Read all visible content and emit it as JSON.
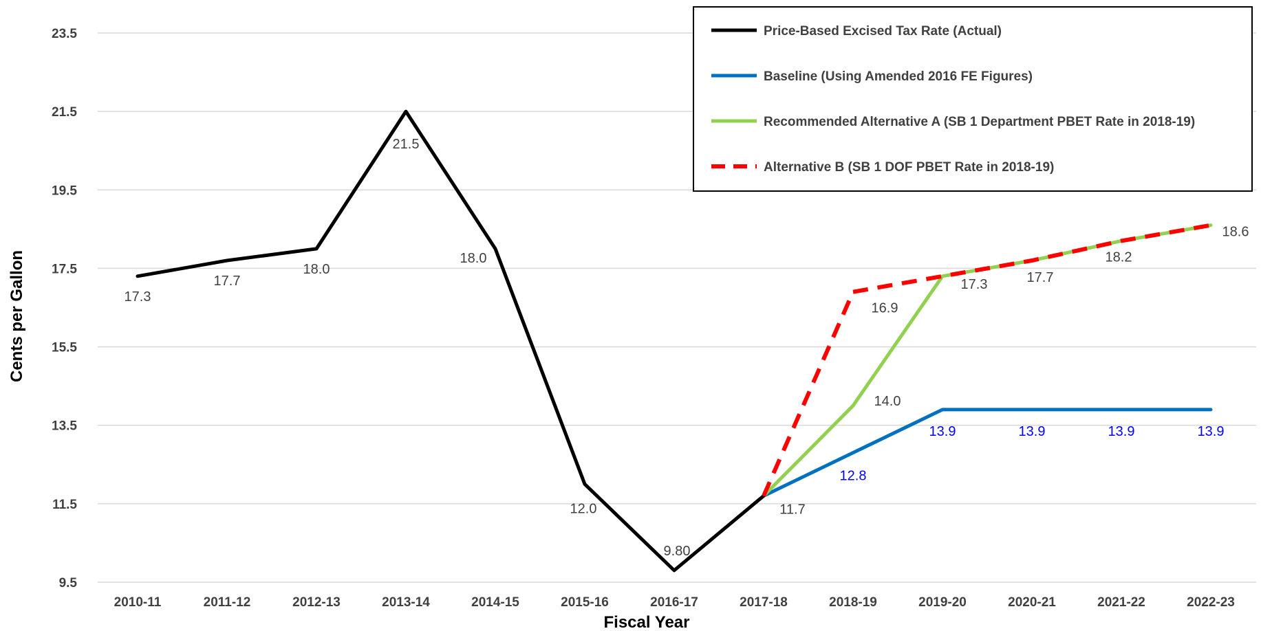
{
  "chart_data": {
    "type": "line",
    "xlabel": "Fiscal Year",
    "ylabel": "Cents per Gallon",
    "ylim": [
      9.5,
      23.5
    ],
    "yticks": [
      "9.5",
      "11.5",
      "13.5",
      "15.5",
      "17.5",
      "19.5",
      "21.5",
      "23.5"
    ],
    "categories": [
      "2010-11",
      "2011-12",
      "2012-13",
      "2013-14",
      "2014-15",
      "2015-16",
      "2016-17",
      "2017-18",
      "2018-19",
      "2019-20",
      "2020-21",
      "2021-22",
      "2022-23"
    ],
    "grid": true,
    "legend_position": "top-right",
    "series": [
      {
        "name": "Price-Based Excised Tax Rate (Actual)",
        "color": "#000000",
        "dash": "solid",
        "values": [
          17.3,
          17.7,
          18.0,
          21.5,
          18.0,
          12.0,
          9.8,
          11.7,
          null,
          null,
          null,
          null,
          null
        ],
        "labels": [
          "17.3",
          "17.7",
          "18.0",
          "21.5",
          "18.0",
          "12.0",
          "9.80",
          "11.7",
          null,
          null,
          null,
          null,
          null
        ],
        "label_color": "#404040"
      },
      {
        "name": "Baseline (Using Amended 2016 FE Figures)",
        "color": "#0070c0",
        "dash": "solid",
        "values": [
          null,
          null,
          null,
          null,
          null,
          null,
          null,
          11.7,
          12.8,
          13.9,
          13.9,
          13.9,
          13.9
        ],
        "labels": [
          null,
          null,
          null,
          null,
          null,
          null,
          null,
          null,
          "12.8",
          "13.9",
          "13.9",
          "13.9",
          "13.9"
        ],
        "label_color": "#0000ff"
      },
      {
        "name": "Recommended Alternative A (SB 1 Department PBET Rate in 2018-19)",
        "color": "#92d050",
        "dash": "solid",
        "values": [
          null,
          null,
          null,
          null,
          null,
          null,
          null,
          11.7,
          14.0,
          17.3,
          17.7,
          18.2,
          18.6
        ],
        "labels": [
          null,
          null,
          null,
          null,
          null,
          null,
          null,
          null,
          "14.0",
          null,
          null,
          null,
          null
        ],
        "label_color": "#404040"
      },
      {
        "name": "Alternative B (SB 1 DOF PBET Rate in 2018-19)",
        "color": "#ff0000",
        "dash": "dashed",
        "values": [
          null,
          null,
          null,
          null,
          null,
          null,
          null,
          11.7,
          16.9,
          17.3,
          17.7,
          18.2,
          18.6
        ],
        "labels": [
          null,
          null,
          null,
          null,
          null,
          null,
          null,
          null,
          "16.9",
          "17.3",
          "17.7",
          "18.2",
          "18.6"
        ],
        "label_color": "#404040"
      }
    ]
  }
}
